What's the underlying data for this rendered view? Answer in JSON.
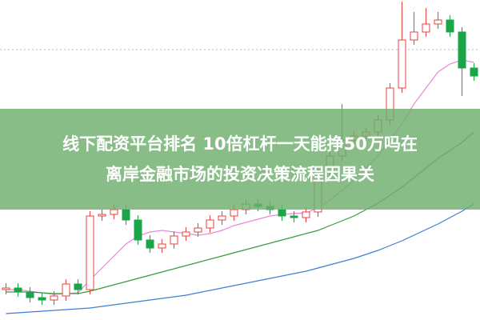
{
  "chart_data": {
    "type": "candlestick",
    "title": [
      "线下配资平台排名 10倍杠杆一天能挣50万吗在",
      "离岸金融市场的投资决策流程因果关"
    ],
    "ylim": [
      0,
      400
    ],
    "up_color": "#e8413c",
    "down_color": "#1aa548",
    "open": [
      38,
      40,
      35,
      28,
      25,
      30,
      45,
      38,
      130,
      132,
      138,
      125,
      100,
      90,
      95,
      105,
      110,
      115,
      125,
      130,
      138,
      145,
      142,
      138,
      130,
      128,
      135,
      185,
      205,
      225,
      230,
      235,
      250,
      290,
      350,
      360,
      370,
      375,
      360,
      315
    ],
    "high": [
      46,
      46,
      41,
      34,
      36,
      51,
      51,
      136,
      138,
      144,
      144,
      131,
      106,
      101,
      111,
      116,
      121,
      131,
      136,
      144,
      151,
      151,
      148,
      144,
      136,
      141,
      191,
      211,
      270,
      236,
      241,
      256,
      296,
      398,
      385,
      390,
      385,
      381,
      366,
      321
    ],
    "low": [
      32,
      29,
      22,
      19,
      19,
      24,
      32,
      32,
      124,
      126,
      119,
      94,
      84,
      84,
      89,
      99,
      104,
      109,
      119,
      124,
      132,
      136,
      132,
      124,
      122,
      122,
      129,
      179,
      199,
      219,
      224,
      229,
      244,
      284,
      344,
      354,
      364,
      354,
      280,
      299
    ],
    "close": [
      40,
      35,
      28,
      25,
      30,
      45,
      38,
      130,
      132,
      138,
      125,
      100,
      90,
      95,
      105,
      110,
      115,
      125,
      130,
      138,
      145,
      142,
      138,
      130,
      128,
      135,
      185,
      205,
      225,
      230,
      235,
      250,
      290,
      350,
      360,
      370,
      375,
      360,
      315,
      305
    ],
    "series": [
      {
        "color": "#e58ad8",
        "values": [
          38,
          38,
          36,
          34,
          32,
          33,
          34,
          50,
          65,
          80,
          95,
          105,
          110,
          112,
          110,
          108,
          106,
          108,
          112,
          118,
          122,
          126,
          130,
          132,
          133,
          134,
          140,
          150,
          162,
          175,
          190,
          205,
          225,
          245,
          270,
          290,
          310,
          320,
          325,
          322
        ]
      },
      {
        "color": "#3d9a3d",
        "values": [
          35,
          35,
          35,
          34,
          33,
          33,
          33,
          36,
          40,
          44,
          48,
          52,
          56,
          60,
          64,
          68,
          72,
          76,
          80,
          84,
          88,
          92,
          96,
          100,
          104,
          108,
          112,
          118,
          124,
          130,
          138,
          146,
          156,
          166,
          178,
          190,
          202,
          212,
          222,
          235
        ]
      },
      {
        "color": "#3f7fd0",
        "values": [
          8,
          9,
          10,
          11,
          12,
          13,
          14,
          15,
          17,
          19,
          21,
          23,
          25,
          27,
          29,
          31,
          34,
          37,
          40,
          43,
          46,
          49,
          52,
          55,
          58,
          61,
          65,
          69,
          73,
          77,
          82,
          87,
          93,
          99,
          106,
          113,
          120,
          128,
          136,
          145
        ]
      }
    ]
  }
}
